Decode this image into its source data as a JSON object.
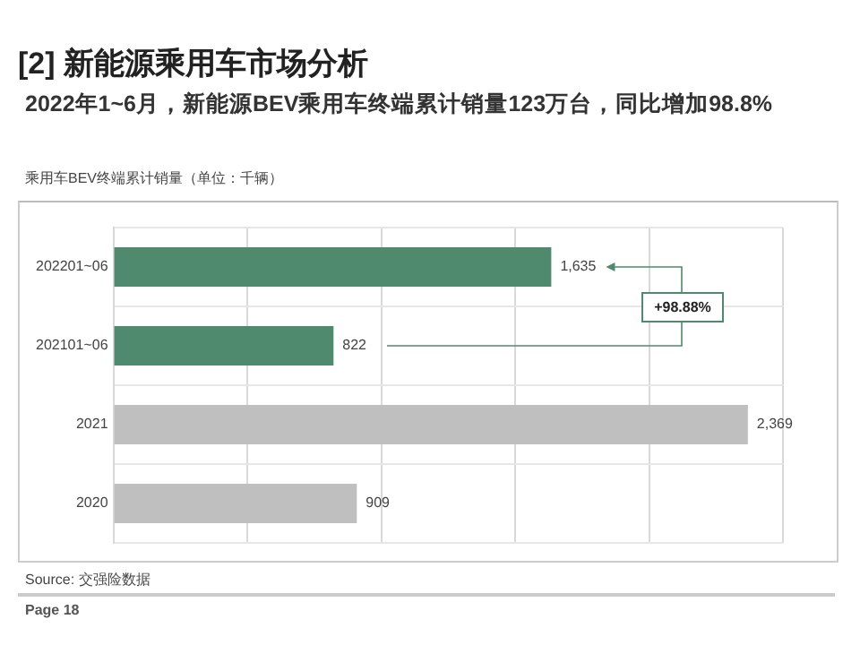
{
  "chart_data": {
    "type": "bar",
    "orientation": "horizontal",
    "title": "[2] 新能源乘用车市场分析",
    "subtitle": "2022年1~6月，新能源BEV乘用车终端累计销量123万台，同比增加98.8%",
    "categories": [
      "202201~06",
      "202101~06",
      "2021",
      "2020"
    ],
    "values": [
      1635,
      822,
      2369,
      909
    ],
    "colors": [
      "#4f8a6f",
      "#4f8a6f",
      "#bfbfbf",
      "#bfbfbf"
    ],
    "xlim": [
      0,
      2500
    ],
    "xticks": [
      {
        "value": 0,
        "label": null
      },
      {
        "value": 500,
        "label": null
      },
      {
        "value": 1000,
        "label": null
      },
      {
        "value": 1500,
        "label": null
      },
      {
        "value": 2000,
        "label": null
      },
      {
        "value": 2500,
        "label": null
      }
    ],
    "value_labels": [
      "1,635",
      "822",
      "2,369",
      "909"
    ],
    "tick_labels": "y",
    "grid": true,
    "legend": false,
    "annotations": [
      "乘用车BEV终端累计销量（单位：千辆）",
      "+98.88%",
      "Source: 交强险数据",
      "Page 18"
    ]
  }
}
